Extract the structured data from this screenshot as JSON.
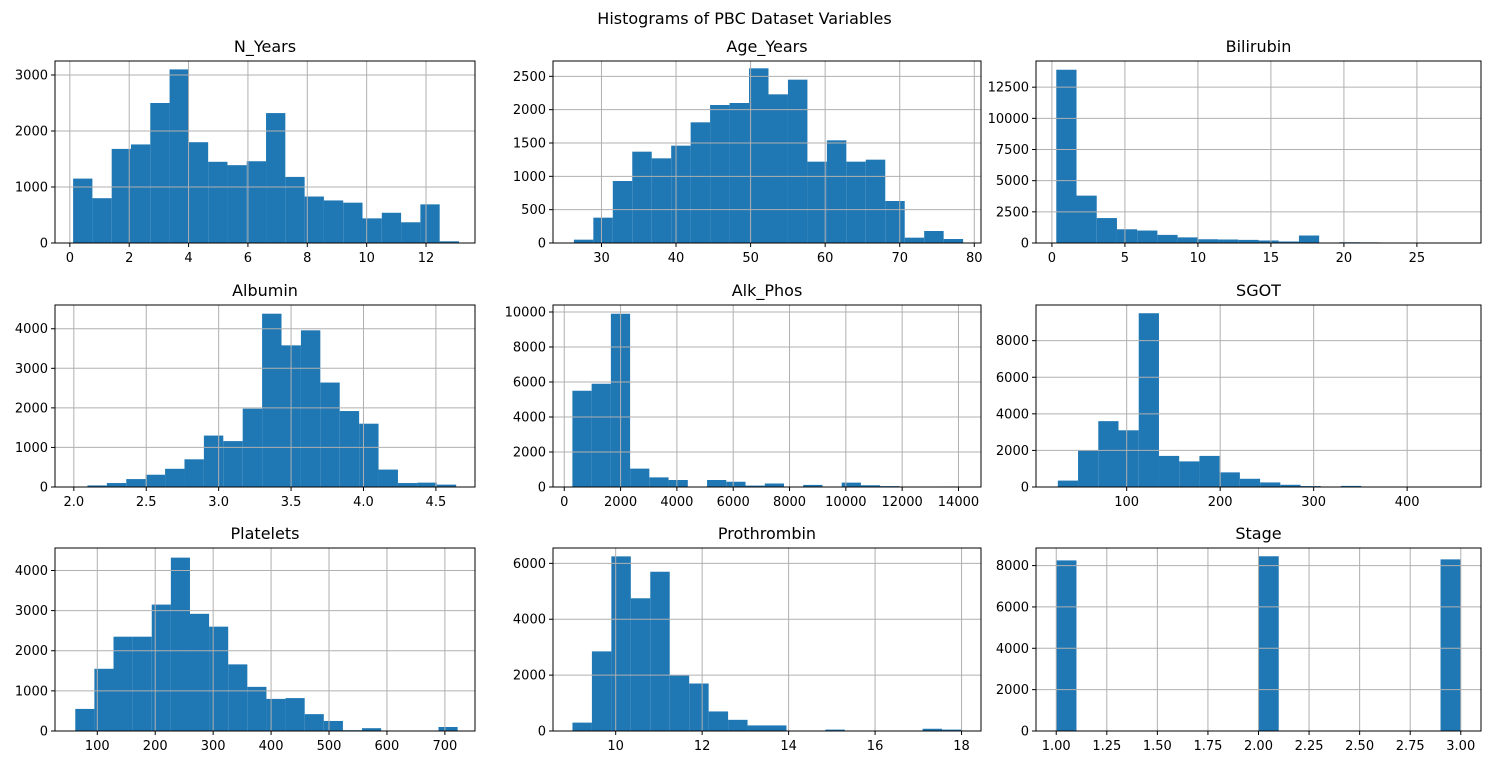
{
  "figure": {
    "title": "Histograms of PBC Dataset Variables"
  },
  "colors": {
    "bar": "#1f77b4",
    "grid": "#b0b0b0"
  },
  "chart_data": [
    {
      "type": "bar",
      "title": "N_Years",
      "xlim": [
        -0.5,
        13.65
      ],
      "ylim": [
        0,
        3250
      ],
      "grid": true,
      "xticks": [
        0,
        2,
        4,
        6,
        8,
        10,
        12
      ],
      "xtick_labels": [
        "0",
        "2",
        "4",
        "6",
        "8",
        "10",
        "12"
      ],
      "yticks": [
        0,
        1000,
        2000,
        3000
      ],
      "ytick_labels": [
        "0",
        "1000",
        "2000",
        "3000"
      ],
      "bin_edges": [
        0.11,
        0.76,
        1.41,
        2.06,
        2.71,
        3.36,
        4.01,
        4.66,
        5.31,
        5.96,
        6.61,
        7.26,
        7.91,
        8.56,
        9.21,
        9.86,
        10.51,
        11.16,
        11.81,
        12.46,
        13.11
      ],
      "values": [
        1150,
        800,
        1680,
        1760,
        2500,
        3100,
        1800,
        1450,
        1390,
        1460,
        2320,
        1180,
        830,
        760,
        720,
        440,
        540,
        370,
        690,
        30
      ]
    },
    {
      "type": "bar",
      "title": "Age_Years",
      "xlim": [
        23.5,
        80.9
      ],
      "ylim": [
        0,
        2730
      ],
      "grid": true,
      "xticks": [
        30,
        40,
        50,
        60,
        70,
        80
      ],
      "xtick_labels": [
        "30",
        "40",
        "50",
        "60",
        "70",
        "80"
      ],
      "yticks": [
        0,
        500,
        1000,
        1500,
        2000,
        2500
      ],
      "ytick_labels": [
        "0",
        "500",
        "1000",
        "1500",
        "2000",
        "2500"
      ],
      "bin_edges": [
        26.3,
        28.91,
        31.52,
        34.13,
        36.74,
        39.35,
        41.96,
        44.57,
        47.18,
        49.79,
        52.4,
        55.01,
        57.62,
        60.23,
        62.84,
        65.45,
        68.06,
        70.67,
        73.28,
        75.89,
        78.5
      ],
      "values": [
        50,
        380,
        930,
        1370,
        1270,
        1460,
        1810,
        2070,
        2100,
        2620,
        2230,
        2450,
        1220,
        1540,
        1220,
        1250,
        630,
        80,
        180,
        60
      ]
    },
    {
      "type": "bar",
      "title": "Bilirubin",
      "xlim": [
        -1.09,
        29.39
      ],
      "ylim": [
        0,
        14600
      ],
      "grid": true,
      "xticks": [
        0,
        5,
        10,
        15,
        20,
        25
      ],
      "xtick_labels": [
        "0",
        "5",
        "10",
        "15",
        "20",
        "25"
      ],
      "yticks": [
        0,
        2500,
        5000,
        7500,
        10000,
        12500
      ],
      "ytick_labels": [
        "0",
        "2500",
        "5000",
        "7500",
        "10000",
        "12500"
      ],
      "bin_edges": [
        0.3,
        1.685,
        3.07,
        4.455,
        5.84,
        7.225,
        8.61,
        9.995,
        11.38,
        12.765,
        14.15,
        15.535,
        16.92,
        18.305,
        19.69,
        21.075,
        22.46,
        23.845,
        25.23,
        26.615,
        28.0
      ],
      "values": [
        13900,
        3800,
        2000,
        1100,
        1000,
        650,
        450,
        300,
        280,
        250,
        200,
        120,
        600,
        20,
        60,
        50,
        0,
        0,
        0,
        40
      ]
    },
    {
      "type": "bar",
      "title": "Albumin",
      "xlim": [
        1.87,
        4.77
      ],
      "ylim": [
        0,
        4600
      ],
      "grid": true,
      "xticks": [
        2.0,
        2.5,
        3.0,
        3.5,
        4.0,
        4.5
      ],
      "xtick_labels": [
        "2.0",
        "2.5",
        "3.0",
        "3.5",
        "4.0",
        "4.5"
      ],
      "yticks": [
        0,
        1000,
        2000,
        3000,
        4000
      ],
      "ytick_labels": [
        "0",
        "1000",
        "2000",
        "3000",
        "4000"
      ],
      "bin_edges": [
        1.96,
        2.094,
        2.228,
        2.362,
        2.496,
        2.63,
        2.764,
        2.898,
        3.032,
        3.166,
        3.3,
        3.434,
        3.568,
        3.702,
        3.836,
        3.97,
        4.104,
        4.238,
        4.372,
        4.506,
        4.64
      ],
      "values": [
        10,
        40,
        100,
        200,
        310,
        460,
        700,
        1300,
        1160,
        1980,
        4380,
        3580,
        3960,
        2640,
        1920,
        1600,
        440,
        100,
        110,
        60
      ]
    },
    {
      "type": "bar",
      "title": "Alk_Phos",
      "xlim": [
        -400,
        14800
      ],
      "ylim": [
        0,
        10400
      ],
      "grid": true,
      "xticks": [
        0,
        2000,
        4000,
        6000,
        8000,
        10000,
        12000,
        14000
      ],
      "xtick_labels": [
        "0",
        "2000",
        "4000",
        "6000",
        "8000",
        "10000",
        "12000",
        "14000"
      ],
      "yticks": [
        0,
        2000,
        4000,
        6000,
        8000,
        10000
      ],
      "ytick_labels": [
        "0",
        "2000",
        "4000",
        "6000",
        "8000",
        "10000"
      ],
      "bin_edges": [
        289,
        972.1,
        1655.2,
        2338.3,
        3021.4,
        3704.5,
        4387.6,
        5070.7,
        5753.8,
        6436.9,
        7120,
        7803.1,
        8486.2,
        9169.3,
        9852.4,
        10535.5,
        11218.6,
        11901.7,
        12584.8,
        13267.9,
        13951
      ],
      "values": [
        5500,
        5900,
        9900,
        1050,
        550,
        400,
        0,
        400,
        300,
        80,
        200,
        0,
        120,
        0,
        250,
        100,
        50,
        0,
        0,
        30
      ]
    },
    {
      "type": "bar",
      "title": "SGOT",
      "xlim": [
        3,
        479
      ],
      "ylim": [
        0,
        9950
      ],
      "grid": true,
      "xticks": [
        100,
        200,
        300,
        400
      ],
      "xtick_labels": [
        "100",
        "200",
        "300",
        "400"
      ],
      "yticks": [
        0,
        2000,
        4000,
        6000,
        8000
      ],
      "ytick_labels": [
        "0",
        "2000",
        "4000",
        "6000",
        "8000"
      ],
      "bin_edges": [
        26.35,
        47.98,
        69.62,
        91.26,
        112.89,
        134.53,
        156.16,
        177.8,
        199.44,
        221.07,
        242.71,
        264.34,
        285.98,
        307.62,
        329.25,
        350.89,
        372.52,
        394.16,
        415.8,
        437.43,
        459.07
      ],
      "values": [
        350,
        2000,
        3600,
        3100,
        9500,
        1700,
        1400,
        1700,
        800,
        450,
        250,
        120,
        50,
        20,
        60,
        10,
        5,
        10,
        5,
        5
      ]
    },
    {
      "type": "bar",
      "title": "Platelets",
      "xlim": [
        27,
        752
      ],
      "ylim": [
        0,
        4560
      ],
      "grid": true,
      "xticks": [
        100,
        200,
        300,
        400,
        500,
        600,
        700
      ],
      "xtick_labels": [
        "100",
        "200",
        "300",
        "400",
        "500",
        "600",
        "700"
      ],
      "yticks": [
        0,
        1000,
        2000,
        3000,
        4000
      ],
      "ytick_labels": [
        "0",
        "1000",
        "2000",
        "3000",
        "4000"
      ],
      "bin_edges": [
        62,
        95,
        128,
        161,
        194,
        227,
        260,
        293,
        326,
        359,
        392,
        425,
        458,
        491,
        524,
        557,
        590,
        623,
        656,
        689,
        722
      ],
      "values": [
        550,
        1550,
        2350,
        2350,
        3150,
        4320,
        2920,
        2600,
        1660,
        1100,
        800,
        820,
        420,
        250,
        20,
        70,
        0,
        0,
        0,
        100
      ]
    },
    {
      "type": "bar",
      "title": "Prothrombin",
      "xlim": [
        8.55,
        18.45
      ],
      "ylim": [
        0,
        6550
      ],
      "grid": true,
      "xticks": [
        10,
        12,
        14,
        16,
        18
      ],
      "xtick_labels": [
        "10",
        "12",
        "14",
        "16",
        "18"
      ],
      "yticks": [
        0,
        2000,
        4000,
        6000
      ],
      "ytick_labels": [
        "0",
        "2000",
        "4000",
        "6000"
      ],
      "bin_edges": [
        9.0,
        9.45,
        9.9,
        10.35,
        10.8,
        11.25,
        11.7,
        12.15,
        12.6,
        13.05,
        13.5,
        13.95,
        14.4,
        14.85,
        15.3,
        15.75,
        16.2,
        16.65,
        17.1,
        17.55,
        18.0
      ],
      "values": [
        300,
        2850,
        6250,
        4750,
        5700,
        2000,
        1700,
        700,
        400,
        200,
        200,
        0,
        0,
        50,
        0,
        0,
        0,
        0,
        80,
        50
      ]
    },
    {
      "type": "bar",
      "title": "Stage",
      "xlim": [
        0.9,
        3.1
      ],
      "ylim": [
        0,
        8850
      ],
      "grid": true,
      "xticks": [
        1.0,
        1.25,
        1.5,
        1.75,
        2.0,
        2.25,
        2.5,
        2.75,
        3.0
      ],
      "xtick_labels": [
        "1.00",
        "1.25",
        "1.50",
        "1.75",
        "2.00",
        "2.25",
        "2.50",
        "2.75",
        "3.00"
      ],
      "yticks": [
        0,
        2000,
        4000,
        6000,
        8000
      ],
      "ytick_labels": [
        "0",
        "2000",
        "4000",
        "6000",
        "8000"
      ],
      "bin_edges": [
        1.0,
        1.1,
        1.2,
        1.3,
        1.4,
        1.5,
        1.6,
        1.7,
        1.8,
        1.9,
        2.0,
        2.1,
        2.2,
        2.3,
        2.4,
        2.5,
        2.6,
        2.7,
        2.8,
        2.9,
        3.0
      ],
      "values": [
        8250,
        0,
        0,
        0,
        0,
        0,
        0,
        0,
        0,
        0,
        8450,
        0,
        0,
        0,
        0,
        0,
        0,
        0,
        0,
        8300
      ]
    }
  ]
}
